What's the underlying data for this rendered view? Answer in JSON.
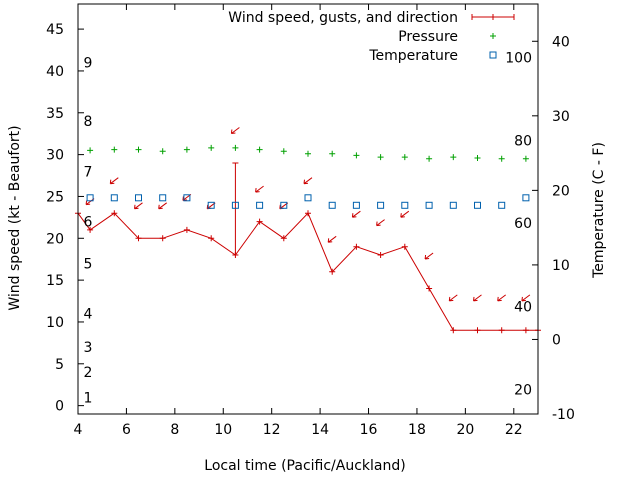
{
  "chart_data": {
    "type": "line",
    "xlabel": "Local time (Pacific/Auckland)",
    "ylabel": "Wind speed (kt - Beaufort)",
    "y2label": "Temperature (C - F)",
    "xlim": [
      4,
      23
    ],
    "ylim": [
      -1,
      48
    ],
    "y2lim": [
      -10,
      45
    ],
    "x_ticks": [
      4,
      6,
      8,
      10,
      12,
      14,
      16,
      18,
      20,
      22
    ],
    "y_ticks": [
      0,
      5,
      10,
      15,
      20,
      25,
      30,
      35,
      40,
      45
    ],
    "y2_ticks": [
      -10,
      0,
      10,
      20,
      30,
      40
    ],
    "beaufort_labels": [
      {
        "label": "1",
        "y": 1
      },
      {
        "label": "2",
        "y": 4
      },
      {
        "label": "3",
        "y": 7
      },
      {
        "label": "4",
        "y": 11
      },
      {
        "label": "5",
        "y": 17
      },
      {
        "label": "6",
        "y": 22
      },
      {
        "label": "7",
        "y": 28
      },
      {
        "label": "8",
        "y": 34
      },
      {
        "label": "9",
        "y": 41
      }
    ],
    "fahrenheit_labels": [
      {
        "label": "20",
        "c": -6.7
      },
      {
        "label": "40",
        "c": 4.4
      },
      {
        "label": "60",
        "c": 15.6
      },
      {
        "label": "80",
        "c": 26.7
      },
      {
        "label": "100",
        "c": 37.8
      }
    ],
    "series": [
      {
        "name": "Wind speed, gusts, and direction",
        "color": "#cc0000",
        "x": [
          4,
          4.5,
          5.5,
          6.5,
          7.5,
          8.5,
          9.5,
          10.5,
          11.5,
          12.5,
          13.5,
          14.5,
          15.5,
          16.5,
          17.5,
          18.5,
          19.5,
          20.5,
          21.5,
          22.5,
          23
        ],
        "y": [
          23,
          21,
          23,
          20,
          20,
          21,
          20,
          18,
          22,
          20,
          23,
          16,
          19,
          18,
          19,
          14,
          9,
          9,
          9,
          9,
          9
        ],
        "gusts": [
          {
            "x": 10.5,
            "low": 18,
            "high": 29
          }
        ],
        "direction_arrows": [
          {
            "x": 4.5,
            "y": 24.5
          },
          {
            "x": 5.5,
            "y": 27
          },
          {
            "x": 6.5,
            "y": 24
          },
          {
            "x": 7.5,
            "y": 24
          },
          {
            "x": 8.5,
            "y": 25
          },
          {
            "x": 9.5,
            "y": 24
          },
          {
            "x": 10.5,
            "y": 33
          },
          {
            "x": 11.5,
            "y": 26
          },
          {
            "x": 12.5,
            "y": 24
          },
          {
            "x": 13.5,
            "y": 27
          },
          {
            "x": 14.5,
            "y": 20
          },
          {
            "x": 15.5,
            "y": 23
          },
          {
            "x": 16.5,
            "y": 22
          },
          {
            "x": 17.5,
            "y": 23
          },
          {
            "x": 18.5,
            "y": 18
          },
          {
            "x": 19.5,
            "y": 13
          },
          {
            "x": 20.5,
            "y": 13
          },
          {
            "x": 21.5,
            "y": 13
          },
          {
            "x": 22.5,
            "y": 13
          }
        ]
      },
      {
        "name": "Pressure",
        "color": "#00a000",
        "x": [
          4.5,
          5.5,
          6.5,
          7.5,
          8.5,
          9.5,
          10.5,
          11.5,
          12.5,
          13.5,
          14.5,
          15.5,
          16.5,
          17.5,
          18.5,
          19.5,
          20.5,
          21.5,
          22.5
        ],
        "y": [
          30.5,
          30.6,
          30.6,
          30.4,
          30.6,
          30.8,
          30.8,
          30.6,
          30.4,
          30.1,
          30.1,
          29.9,
          29.7,
          29.7,
          29.5,
          29.7,
          29.6,
          29.5,
          29.5
        ]
      },
      {
        "name": "Temperature",
        "color": "#0060ad",
        "x": [
          4.5,
          5.5,
          6.5,
          7.5,
          8.5,
          9.5,
          10.5,
          11.5,
          12.5,
          13.5,
          14.5,
          15.5,
          16.5,
          17.5,
          18.5,
          19.5,
          20.5,
          21.5,
          22.5
        ],
        "y2": [
          19,
          19,
          19,
          19,
          19,
          18,
          18,
          18,
          18,
          19,
          18,
          18,
          18,
          18,
          18,
          18,
          18,
          18,
          19
        ]
      }
    ]
  }
}
